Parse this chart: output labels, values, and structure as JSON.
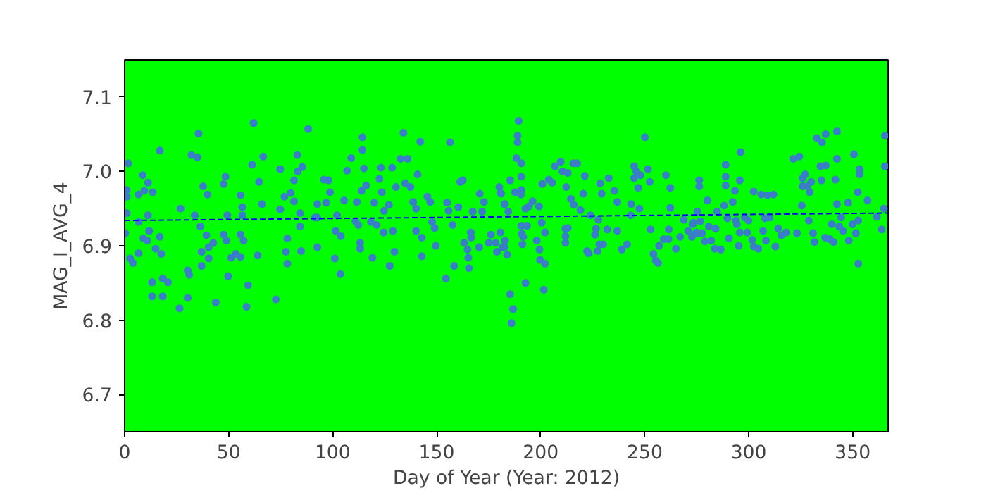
{
  "chart_data": {
    "type": "scatter",
    "xlabel": "Day of Year (Year: 2012)",
    "ylabel": "MAG_I_AVG_4",
    "xlim": [
      0,
      367
    ],
    "ylim": [
      6.65,
      7.15
    ],
    "xticks": [
      0,
      50,
      100,
      150,
      200,
      250,
      300,
      350
    ],
    "yticks": [
      6.7,
      6.8,
      6.9,
      {
        "value": 7.0,
        "label": "7.0"
      },
      7.1
    ],
    "grid": false,
    "series": [
      {
        "color": "#3a7dc9",
        "marker": "circle",
        "x": [
          1.7,
          1,
          1,
          1,
          0.3,
          2.6,
          4,
          6.7,
          8.7,
          11.2,
          6.7,
          9.4,
          13.5,
          11.2,
          6.7,
          9,
          11.8,
          10.9,
          14.9,
          17.6,
          16.9,
          16.9,
          13.2,
          13.2,
          18.3,
          18.3,
          20.8,
          26.4,
          26.9,
          30.3,
          30.3,
          31,
          32.1,
          35,
          35.5,
          33.7,
          36.4,
          37.7,
          39.8,
          37,
          37,
          39.3,
          40.4,
          40.4,
          42.6,
          43.8,
          47.6,
          48.5,
          47.6,
          48.9,
          49.4,
          49.8,
          51.2,
          53.4,
          55.7,
          55.7,
          56.6,
          56.6,
          55.7,
          57.2,
          59.3,
          58.6,
          62,
          61.3,
          63.9,
          64.6,
          66,
          66.6,
          72.7,
          74.8,
          74.8,
          76.8,
          77.5,
          78.2,
          78.2,
          79.8,
          81.4,
          81.4,
          83,
          83.2,
          84.3,
          84.3,
          85.4,
          84.8,
          88.2,
          91.5,
          92.6,
          92.6,
          92.6,
          95.8,
          98,
          98.7,
          96.9,
          101,
          101.4,
          102.1,
          103.7,
          103.9,
          105.5,
          106.9,
          108.9,
          111.6,
          111,
          112.3,
          113.2,
          113.2,
          113.9,
          114.3,
          114.3,
          115,
          116.1,
          119.1,
          118.4,
          120,
          121.1,
          122.5,
          123.2,
          123.6,
          124.5,
          124.7,
          127,
          127.4,
          128.6,
          129,
          129.7,
          130.4,
          132.6,
          134,
          134.9,
          136,
          137.4,
          138.7,
          140.1,
          140.8,
          140.1,
          142.1,
          142.8,
          142.8,
          145.5,
          146.9,
          147.8,
          149,
          149.6,
          154.4,
          155,
          155.7,
          156.4,
          157.7,
          158.4,
          160.4,
          161.3,
          162.5,
          163.2,
          164.8,
          165.2,
          165.5,
          166.4,
          166.6,
          167.3,
          170.4,
          170.7,
          171.8,
          172.7,
          175,
          176.1,
          178.3,
          179,
          180.6,
          180.6,
          180.1,
          181.7,
          182.8,
          182.8,
          186,
          186.7,
          185.3,
          189.4,
          188.9,
          188.9,
          188.3,
          190.7,
          190.7,
          185.3,
          181,
          182.6,
          184.4,
          187.6,
          190.5,
          190.7,
          192.7,
          194.3,
          190.7,
          193.4,
          190.9,
          191.6,
          191.2,
          183.9,
          182.6,
          192.7,
          196.1,
          198.1,
          199.2,
          199.4,
          199.7,
          200.5,
          200.8,
          201.5,
          202.1,
          202.1,
          203.9,
          205.5,
          206.9,
          209.6,
          210.5,
          212.3,
          213,
          211.9,
          211.9,
          213,
          211.9,
          214.5,
          215.9,
          215.7,
          217.5,
          219.1,
          220.5,
          221.2,
          222.3,
          223,
          223.9,
          226.1,
          226.6,
          227.3,
          227.7,
          228.2,
          228.6,
          229.3,
          230,
          232,
          232.7,
          235.4,
          236.8,
          236.8,
          239,
          241.5,
          243.3,
          243.5,
          244.9,
          244.9,
          246,
          247.4,
          248,
          246.9,
          250.1,
          251.5,
          252.4,
          252.8,
          254.2,
          255.3,
          256.4,
          256.9,
          259.1,
          260.2,
          261.4,
          262.3,
          262.3,
          261.6,
          265,
          267,
          268.8,
          270.9,
          272.7,
          273.1,
          274.5,
          273.5,
          275.3,
          276.2,
          276.2,
          276.7,
          275.8,
          274.9,
          277.6,
          278.9,
          280.1,
          280.8,
          281.9,
          283.7,
          284.1,
          284.8,
          286.6,
          288.2,
          288.9,
          288.9,
          288.9,
          289.8,
          290.5,
          292.3,
          293.4,
          293.9,
          294.3,
          295.2,
          295.7,
          295.7,
          296.1,
          298.1,
          299.3,
          299.9,
          301.7,
          302.4,
          302.4,
          304.6,
          306,
          306.9,
          307.8,
          308.3,
          309,
          310.1,
          311.9,
          312.8,
          314.2,
          315.7,
          318,
          321.4,
          323.2,
          324.3,
          325.5,
          325.9,
          325.9,
          327.1,
          328.2,
          328.9,
          329.3,
          330,
          330.9,
          331.6,
          332.7,
          334.5,
          335,
          335.2,
          337,
          337,
          336.8,
          339,
          339.9,
          340.8,
          341.7,
          342.4,
          342.4,
          342.4,
          343.5,
          344.4,
          345.3,
          347.8,
          348.1,
          349.9,
          350.6,
          351.5,
          352.4,
          352.6,
          353.3,
          353.3,
          352.6,
          357.1,
          361.6,
          363.9,
          365,
          365.5,
          365.5
        ],
        "values": [
          7.011,
          6.975,
          6.966,
          6.944,
          6.917,
          6.883,
          6.877,
          6.89,
          6.995,
          6.985,
          6.969,
          6.974,
          6.972,
          6.941,
          6.932,
          6.91,
          6.92,
          6.907,
          6.896,
          6.889,
          6.912,
          7.028,
          6.851,
          6.832,
          6.856,
          6.832,
          6.851,
          6.816,
          6.95,
          6.867,
          6.83,
          6.861,
          7.022,
          7.019,
          7.051,
          6.941,
          6.926,
          6.98,
          6.969,
          6.892,
          6.873,
          6.914,
          6.898,
          6.883,
          6.904,
          6.824,
          6.915,
          6.993,
          6.983,
          6.907,
          6.941,
          6.859,
          6.884,
          6.889,
          6.885,
          6.968,
          6.952,
          6.941,
          6.915,
          6.907,
          6.847,
          6.818,
          7.065,
          7.009,
          6.887,
          6.986,
          6.956,
          7.02,
          6.828,
          7.003,
          6.949,
          6.966,
          6.892,
          6.91,
          6.876,
          6.971,
          6.988,
          6.96,
          7.022,
          7,
          6.926,
          6.944,
          7.006,
          6.893,
          7.057,
          6.938,
          6.956,
          6.938,
          6.898,
          6.989,
          6.988,
          6.972,
          6.958,
          6.883,
          6.92,
          6.941,
          6.862,
          6.913,
          6.961,
          7.001,
          7.018,
          6.959,
          6.933,
          6.928,
          6.904,
          6.896,
          6.974,
          7.046,
          7.029,
          7.004,
          6.981,
          6.884,
          6.932,
          6.958,
          6.928,
          6.99,
          7.005,
          6.972,
          6.918,
          6.947,
          6.955,
          6.873,
          7.005,
          6.92,
          6.892,
          6.979,
          7.017,
          7.052,
          6.984,
          7.017,
          6.979,
          6.959,
          6.95,
          6.996,
          6.92,
          7.04,
          6.911,
          6.886,
          6.966,
          6.959,
          6.932,
          6.924,
          6.9,
          6.856,
          6.958,
          6.947,
          7.039,
          6.928,
          6.873,
          6.952,
          6.986,
          6.988,
          6.904,
          6.895,
          6.884,
          6.87,
          6.918,
          6.911,
          6.946,
          6.898,
          6.97,
          6.946,
          6.959,
          6.904,
          6.915,
          6.904,
          6.892,
          6.971,
          6.918,
          6.979,
          6.898,
          6.956,
          6.907,
          6.796,
          6.815,
          6.835,
          7.068,
          7.048,
          7.039,
          7.018,
          7.011,
          6.993,
          6.988,
          6.97,
          6.956,
          6.946,
          6.972,
          6.969,
          6.975,
          6.95,
          6.953,
          6.927,
          6.927,
          6.916,
          6.912,
          6.902,
          6.888,
          6.898,
          6.85,
          6.96,
          6.907,
          6.953,
          6.895,
          6.881,
          6.931,
          6.983,
          6.841,
          6.876,
          6.918,
          6.989,
          6.985,
          7.007,
          7.013,
          7,
          6.979,
          6.998,
          6.923,
          6.904,
          6.924,
          6.913,
          6.963,
          6.955,
          7.011,
          7.011,
          6.948,
          6.97,
          6.994,
          6.893,
          6.89,
          6.941,
          6.915,
          6.923,
          6.893,
          6.935,
          6.902,
          6.984,
          6.97,
          6.902,
          6.922,
          6.991,
          6.974,
          6.959,
          6.92,
          6.895,
          6.902,
          6.941,
          6.956,
          7.007,
          6.991,
          7,
          6.95,
          6.995,
          6.978,
          7.046,
          7.003,
          6.986,
          6.922,
          6.889,
          6.88,
          6.877,
          6.9,
          6.909,
          6.995,
          6.909,
          6.978,
          6.951,
          6.922,
          6.896,
          6.912,
          6.935,
          6.92,
          6.912,
          6.929,
          6.917,
          6.931,
          6.946,
          6.988,
          6.98,
          6.933,
          6.917,
          6.918,
          6.917,
          6.906,
          6.961,
          6.926,
          6.907,
          6.896,
          6.923,
          6.946,
          6.895,
          6.954,
          7.009,
          6.993,
          6.981,
          6.937,
          6.91,
          6.959,
          6.974,
          6.934,
          6.929,
          6.9,
          6.988,
          6.918,
          7.026,
          6.938,
          6.918,
          6.934,
          6.908,
          6.973,
          6.899,
          6.896,
          6.969,
          6.92,
          6.937,
          6.907,
          6.968,
          6.938,
          6.969,
          6.899,
          6.923,
          6.914,
          6.918,
          7.017,
          6.917,
          7.02,
          6.954,
          6.991,
          6.98,
          6.996,
          6.98,
          6.934,
          6.972,
          6.986,
          6.917,
          6.905,
          7.045,
          7.007,
          6.988,
          7.039,
          7.05,
          7.008,
          6.911,
          6.909,
          6.929,
          6.905,
          6.989,
          7.054,
          7.017,
          6.956,
          6.926,
          6.938,
          6.92,
          6.958,
          6.907,
          6.929,
          7.023,
          6.917,
          6.972,
          6.876,
          7.003,
          6.996,
          6.934,
          6.961,
          6.939,
          6.922,
          6.95,
          7.048,
          7.007
        ]
      },
      {
        "type": "line",
        "color": "#0000ff",
        "line_style": "dashed",
        "x": [
          0,
          367
        ],
        "values": [
          6.934,
          6.944
        ]
      }
    ]
  }
}
